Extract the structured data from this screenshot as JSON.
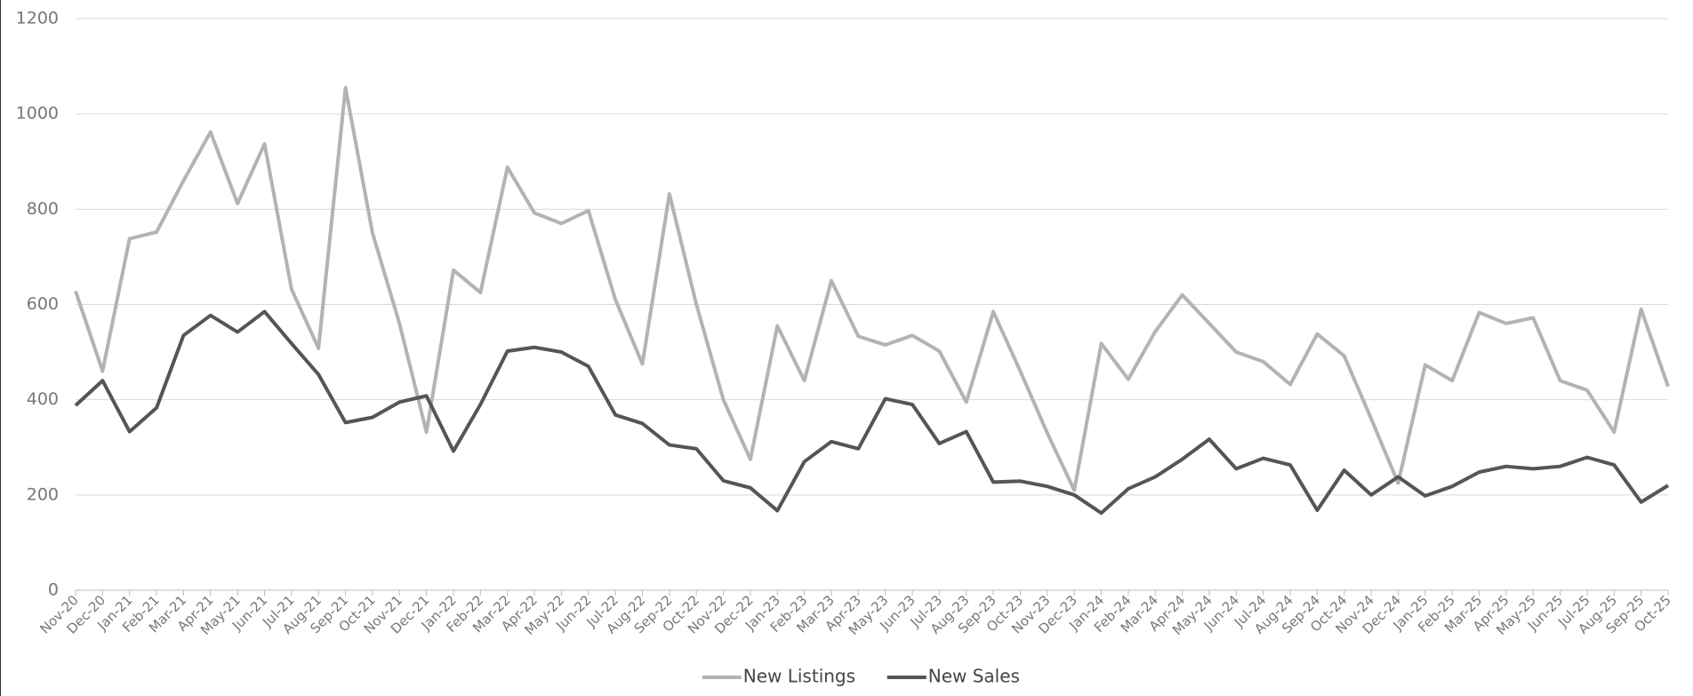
{
  "chart_data": {
    "type": "line",
    "categories": [
      "Nov-20",
      "Dec-20",
      "Jan-21",
      "Feb-21",
      "Mar-21",
      "Apr-21",
      "May-21",
      "Jun-21",
      "Jul-21",
      "Aug-21",
      "Sep-21",
      "Oct-21",
      "Nov-21",
      "Dec-21",
      "Jan-22",
      "Feb-22",
      "Mar-22",
      "Apr-22",
      "May-22",
      "Jun-22",
      "Jul-22",
      "Aug-22",
      "Sep-22",
      "Oct-22",
      "Nov-22",
      "Dec-22",
      "Jan-23",
      "Feb-23",
      "Mar-23",
      "Apr-23",
      "May-23",
      "Jun-23",
      "Jul-23",
      "Aug-23",
      "Sep-23",
      "Oct-23",
      "Nov-23",
      "Dec-23",
      "Jan-24",
      "Feb-24",
      "Mar-24",
      "Apr-24",
      "May-24",
      "Jun-24",
      "Jul-24",
      "Aug-24",
      "Sep-24",
      "Oct-24",
      "Nov-24",
      "Dec-24",
      "Jan-25",
      "Feb-25",
      "Mar-25",
      "Apr-25",
      "May-25",
      "Jun-25",
      "Jul-25",
      "Aug-25",
      "Sep-25",
      "Oct-25"
    ],
    "series": [
      {
        "name": "New Listings",
        "color": "#b3b3b3",
        "values": [
          628,
          460,
          738,
          752,
          860,
          962,
          812,
          937,
          632,
          508,
          1055,
          750,
          560,
          332,
          672,
          625,
          888,
          792,
          770,
          797,
          610,
          475,
          832,
          600,
          400,
          275,
          555,
          440,
          650,
          533,
          515,
          535,
          502,
          395,
          585,
          460,
          330,
          210,
          518,
          443,
          543,
          620,
          560,
          500,
          480,
          432,
          538,
          492,
          360,
          225,
          473,
          440,
          583,
          560,
          572,
          440,
          420,
          332,
          590,
          428
        ]
      },
      {
        "name": "New Sales",
        "color": "#555555",
        "values": [
          388,
          440,
          333,
          383,
          535,
          577,
          542,
          585,
          518,
          453,
          352,
          363,
          395,
          408,
          292,
          390,
          502,
          510,
          500,
          470,
          368,
          350,
          305,
          297,
          230,
          215,
          167,
          270,
          312,
          297,
          402,
          390,
          308,
          333,
          227,
          229,
          218,
          200,
          162,
          213,
          238,
          275,
          317,
          255,
          277,
          263,
          168,
          252,
          200,
          238,
          198,
          218,
          248,
          260,
          255,
          260,
          279,
          263,
          185,
          220
        ]
      }
    ],
    "ylim": [
      0,
      1200
    ],
    "yticks": [
      0,
      200,
      400,
      600,
      800,
      1000,
      1200
    ],
    "grid": true,
    "legend": "bottom"
  }
}
